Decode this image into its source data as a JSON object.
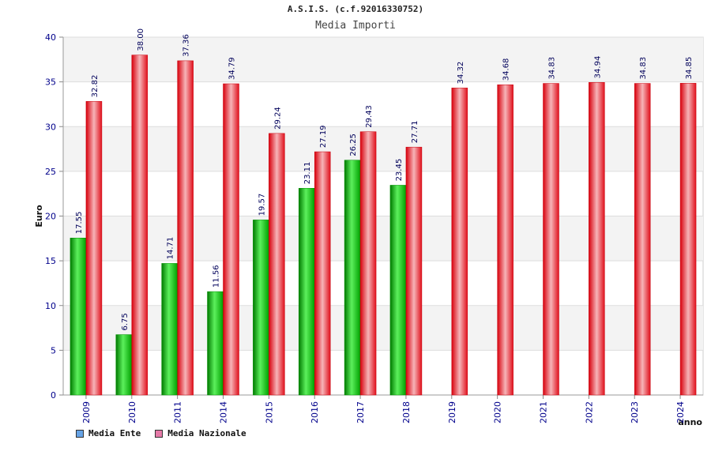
{
  "header": {
    "title": "A.S.I.S. (c.f.92016330752)",
    "subtitle": "Media Importi"
  },
  "legend": {
    "items": [
      {
        "label": "Media Ente",
        "color": "#66a3e6"
      },
      {
        "label": "Media Nazionale",
        "color": "#e67aa8"
      }
    ]
  },
  "colors": {
    "ente_bar": "#00b400",
    "nazionale_bar": "#e8222c",
    "label_text": "#00005a",
    "axis_text": "#00008b",
    "band": "#f3f3f3"
  },
  "chart_data": {
    "type": "bar",
    "title": "Media Importi",
    "xlabel": "anno",
    "ylabel": "Euro",
    "ylim": [
      0,
      40
    ],
    "yticks": [
      0,
      5,
      10,
      15,
      20,
      25,
      30,
      35,
      40
    ],
    "grid": true,
    "legend_position": "bottom-left",
    "categories": [
      "2009",
      "2010",
      "2011",
      "2014",
      "2015",
      "2016",
      "2017",
      "2018",
      "2019",
      "2020",
      "2021",
      "2022",
      "2023",
      "2024"
    ],
    "series": [
      {
        "name": "Media Ente",
        "values": [
          17.55,
          6.75,
          14.71,
          11.56,
          19.57,
          23.11,
          26.25,
          23.45,
          null,
          null,
          null,
          null,
          null,
          null
        ]
      },
      {
        "name": "Media Nazionale",
        "values": [
          32.82,
          38.0,
          37.36,
          34.79,
          29.24,
          27.19,
          29.43,
          27.71,
          34.32,
          34.68,
          34.83,
          34.94,
          34.83,
          34.85
        ]
      }
    ],
    "data_labels": [
      [
        "17.55",
        "6.75",
        "14.71",
        "11.56",
        "19.57",
        "23.11",
        "26.25",
        "23.45",
        "",
        "",
        "",
        "",
        "",
        ""
      ],
      [
        "32.82",
        "38.00",
        "37.36",
        "34.79",
        "29.24",
        "27.19",
        "29.43",
        "27.71",
        "34.32",
        "34.68",
        "34.83",
        "34.94",
        "34.83",
        "34.85"
      ]
    ]
  }
}
